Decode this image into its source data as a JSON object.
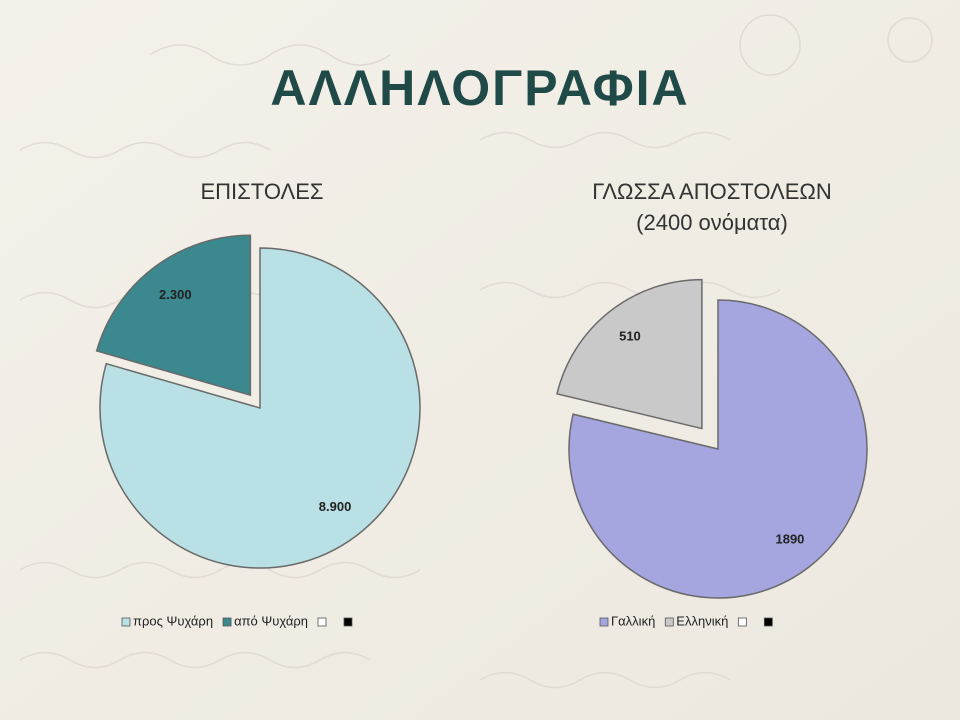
{
  "title": "ΑΛΛΗΛΟΓΡΑΦΙΑ",
  "chart_data": [
    {
      "type": "pie",
      "title": "ΕΠΙΣΤΟΛΕΣ",
      "categories": [
        "προς Ψυχάρη",
        "από Ψυχάρη"
      ],
      "values": [
        8900,
        2300
      ],
      "value_labels": [
        "8.900",
        "2.300"
      ],
      "colors": [
        "#b9e0e4",
        "#3b888f"
      ]
    },
    {
      "type": "pie",
      "title": "ΓΛΩΣΣΑ ΑΠΟΣΤΟΛΕΩΝ",
      "subtitle": "(2400 ονόματα)",
      "categories": [
        "Γαλλική",
        "Ελληνική"
      ],
      "values": [
        1890,
        510
      ],
      "colors": [
        "#a5a5e0",
        "#c9c9c9"
      ]
    }
  ]
}
